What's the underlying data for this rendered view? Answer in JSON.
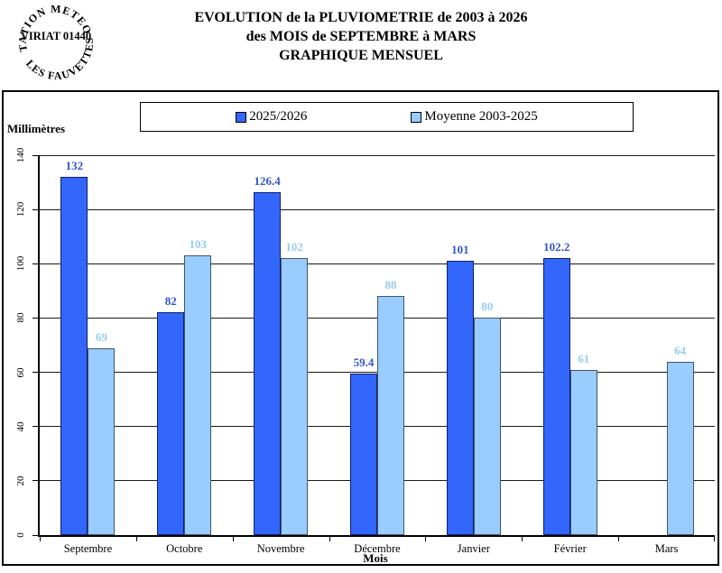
{
  "stamp": {
    "top": "STATION METEO",
    "middle": "VIRIAT 01440",
    "bottom": "LES FAUVETTES"
  },
  "title": {
    "line1": "EVOLUTION de la PLUVIOMETRIE de 2003 à 2026",
    "line2": "des MOIS de SEPTEMBRE à MARS",
    "line3": "GRAPHIQUE MENSUEL"
  },
  "chart_data": {
    "type": "bar",
    "title": "EVOLUTION de la PLUVIOMETRIE de 2003 à 2026 des MOIS de SEPTEMBRE à MARS — GRAPHIQUE MENSUEL",
    "categories": [
      "Septembre",
      "Octobre",
      "Novembre",
      "Décembre",
      "Janvier",
      "Février",
      "Mars"
    ],
    "series": [
      {
        "name": "2025/2026",
        "color": "#3366FA",
        "border_color": "#101d6b",
        "label_color": "#3355CC",
        "values": [
          132,
          82,
          126.4,
          59.4,
          101,
          102.2,
          null
        ]
      },
      {
        "name": "Moyenne 2003-2025",
        "color": "#99CCFF",
        "border_color": "#445566",
        "label_color": "#99CCEE",
        "values": [
          69,
          103,
          102,
          88,
          80,
          61,
          64
        ]
      }
    ],
    "ylabel": "Millimètres",
    "xlabel": "Mois",
    "ylim": [
      0,
      140
    ],
    "yticks": [
      0,
      20,
      40,
      60,
      80,
      100,
      120,
      140
    ],
    "grid": true,
    "legend_position": "top"
  }
}
